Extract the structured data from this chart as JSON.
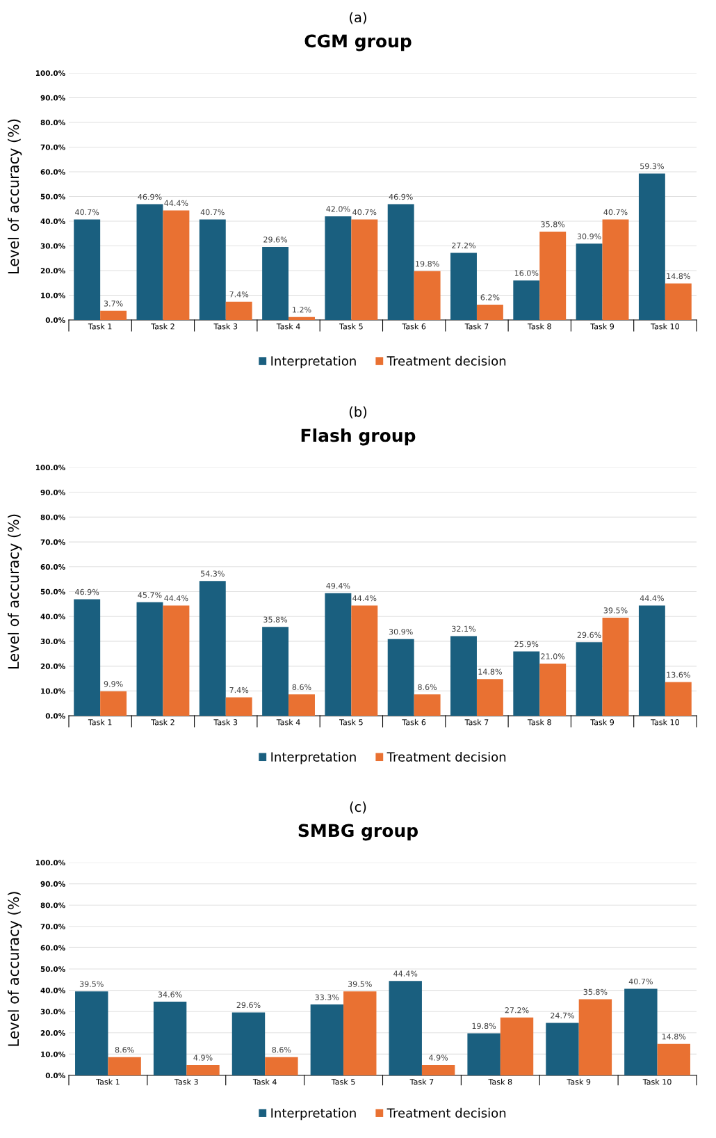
{
  "chart_data": [
    {
      "type": "bar",
      "subtitle": "(a)",
      "title": "CGM group",
      "ylabel": "Level of accuracy (%)",
      "categories": [
        "Task 1",
        "Task 2",
        "Task 3",
        "Task 4",
        "Task 5",
        "Task 6",
        "Task 7",
        "Task 8",
        "Task 9",
        "Task 10"
      ],
      "series": [
        {
          "name": "Interpretation",
          "color": "#1a5f7f",
          "values": [
            40.7,
            46.9,
            40.7,
            29.6,
            42.0,
            46.9,
            27.2,
            16.0,
            30.9,
            59.3
          ]
        },
        {
          "name": "Treatment decision",
          "color": "#e97132",
          "values": [
            3.7,
            44.4,
            7.4,
            1.2,
            40.7,
            19.8,
            6.2,
            35.8,
            40.7,
            14.8
          ]
        }
      ],
      "ylim": [
        0,
        100
      ],
      "yticks": [
        {
          "value": 0,
          "label": "0.0%"
        },
        {
          "value": 10,
          "label": "10.0%"
        },
        {
          "value": 20,
          "label": "20.0%"
        },
        {
          "value": 30,
          "label": "30.0%"
        },
        {
          "value": 40,
          "label": "40.0%"
        },
        {
          "value": 50,
          "label": "50.0%"
        },
        {
          "value": 60,
          "label": "60.0%"
        },
        {
          "value": 70,
          "label": "70.0%"
        },
        {
          "value": 80,
          "label": "80.0%"
        },
        {
          "value": 90,
          "label": "90.0%"
        },
        {
          "value": 100,
          "label": "100.0%"
        }
      ],
      "value_labels": [
        [
          "40.7%",
          "46.9%",
          "40.7%",
          "29.6%",
          "42.0%",
          "46.9%",
          "27.2%",
          "16.0%",
          "30.9%",
          "59.3%"
        ],
        [
          "3.7%",
          "44.4%",
          "7.4%",
          "1.2%",
          "40.7%",
          "19.8%",
          "6.2%",
          "35.8%",
          "40.7%",
          "14.8%"
        ]
      ],
      "grid": "y",
      "legend": "bottom"
    },
    {
      "type": "bar",
      "subtitle": "(b)",
      "title": "Flash group",
      "ylabel": "Level of accuracy (%)",
      "categories": [
        "Task 1",
        "Task 2",
        "Task 3",
        "Task 4",
        "Task 5",
        "Task 6",
        "Task 7",
        "Task 8",
        "Task 9",
        "Task 10"
      ],
      "series": [
        {
          "name": "Interpretation",
          "color": "#1a5f7f",
          "values": [
            46.9,
            45.7,
            54.3,
            35.8,
            49.4,
            30.9,
            32.1,
            25.9,
            29.6,
            44.4
          ]
        },
        {
          "name": "Treatment decision",
          "color": "#e97132",
          "values": [
            9.9,
            44.4,
            7.4,
            8.6,
            44.4,
            8.6,
            14.8,
            21.0,
            39.5,
            13.6
          ]
        }
      ],
      "ylim": [
        0,
        100
      ],
      "yticks": [
        {
          "value": 0,
          "label": "0.0%"
        },
        {
          "value": 10,
          "label": "10.0%"
        },
        {
          "value": 20,
          "label": "20.0%"
        },
        {
          "value": 30,
          "label": "30.0%"
        },
        {
          "value": 40,
          "label": "40.0%"
        },
        {
          "value": 50,
          "label": "50.0%"
        },
        {
          "value": 60,
          "label": "60.0%"
        },
        {
          "value": 70,
          "label": "70.0%"
        },
        {
          "value": 80,
          "label": "80.0%"
        },
        {
          "value": 90,
          "label": "90.0%"
        },
        {
          "value": 100,
          "label": "100.0%"
        }
      ],
      "value_labels": [
        [
          "46.9%",
          "45.7%",
          "54.3%",
          "35.8%",
          "49.4%",
          "30.9%",
          "32.1%",
          "25.9%",
          "29.6%",
          "44.4%"
        ],
        [
          "9.9%",
          "44.4%",
          "7.4%",
          "8.6%",
          "44.4%",
          "8.6%",
          "14.8%",
          "21.0%",
          "39.5%",
          "13.6%"
        ]
      ],
      "grid": "y",
      "legend": "bottom"
    },
    {
      "type": "bar",
      "subtitle": "(c)",
      "title": "SMBG group",
      "ylabel": "Level of accuracy (%)",
      "categories": [
        "Task 1",
        "Task 3",
        "Task 4",
        "Task 5",
        "Task 7",
        "Task 8",
        "Task 9",
        "Task 10"
      ],
      "series": [
        {
          "name": "Interpretation",
          "color": "#1a5f7f",
          "values": [
            39.5,
            34.6,
            29.6,
            33.3,
            44.4,
            19.8,
            24.7,
            40.7
          ]
        },
        {
          "name": "Treatment decision",
          "color": "#e97132",
          "values": [
            8.6,
            4.9,
            8.6,
            39.5,
            4.9,
            27.2,
            35.8,
            14.8
          ]
        }
      ],
      "ylim": [
        0,
        100
      ],
      "yticks": [
        {
          "value": 0,
          "label": "0.0%"
        },
        {
          "value": 10,
          "label": "10.0%"
        },
        {
          "value": 20,
          "label": "20.0%"
        },
        {
          "value": 30,
          "label": "30.0%"
        },
        {
          "value": 40,
          "label": "40.0%"
        },
        {
          "value": 50,
          "label": "50.0%"
        },
        {
          "value": 60,
          "label": "60.0%"
        },
        {
          "value": 70,
          "label": "70.0%"
        },
        {
          "value": 80,
          "label": "80.0%"
        },
        {
          "value": 90,
          "label": "90.0%"
        },
        {
          "value": 100,
          "label": "100.0%"
        }
      ],
      "value_labels": [
        [
          "39.5%",
          "34.6%",
          "29.6%",
          "33.3%",
          "44.4%",
          "19.8%",
          "24.7%",
          "40.7%"
        ],
        [
          "8.6%",
          "4.9%",
          "8.6%",
          "39.5%",
          "4.9%",
          "27.2%",
          "35.8%",
          "14.8%"
        ]
      ],
      "grid": "y",
      "legend": "bottom"
    }
  ]
}
